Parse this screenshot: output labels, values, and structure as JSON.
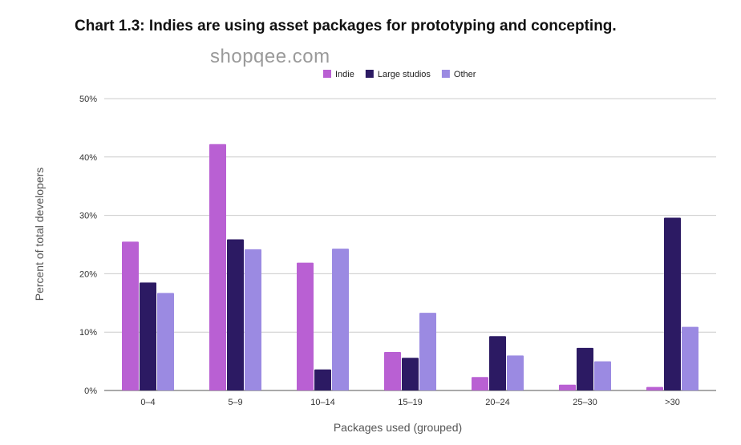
{
  "chart_data": {
    "type": "bar",
    "title": "Chart 1.3: Indies are using asset packages for prototyping and concepting.",
    "watermark": "shopqee.com",
    "xlabel": "Packages used (grouped)",
    "ylabel": "Percent of total developers",
    "ylim": [
      0,
      50
    ],
    "yticks": [
      0,
      10,
      20,
      30,
      40,
      50
    ],
    "ytick_labels": [
      "0%",
      "10%",
      "20%",
      "30%",
      "40%",
      "50%"
    ],
    "grid": true,
    "legend_position": "top",
    "categories": [
      "0–4",
      "5–9",
      "10–14",
      "15–19",
      "20–24",
      "25–30",
      ">30"
    ],
    "series": [
      {
        "name": "Indie",
        "color": "#b960d3",
        "values": [
          25.5,
          42.2,
          21.9,
          6.6,
          2.3,
          1.0,
          0.6
        ]
      },
      {
        "name": "Large studios",
        "color": "#2c1a63",
        "values": [
          18.5,
          25.9,
          3.6,
          5.6,
          9.3,
          7.3,
          29.6
        ]
      },
      {
        "name": "Other",
        "color": "#9b8ae2",
        "values": [
          16.7,
          24.2,
          24.3,
          13.3,
          6.0,
          5.0,
          10.9
        ]
      }
    ]
  }
}
